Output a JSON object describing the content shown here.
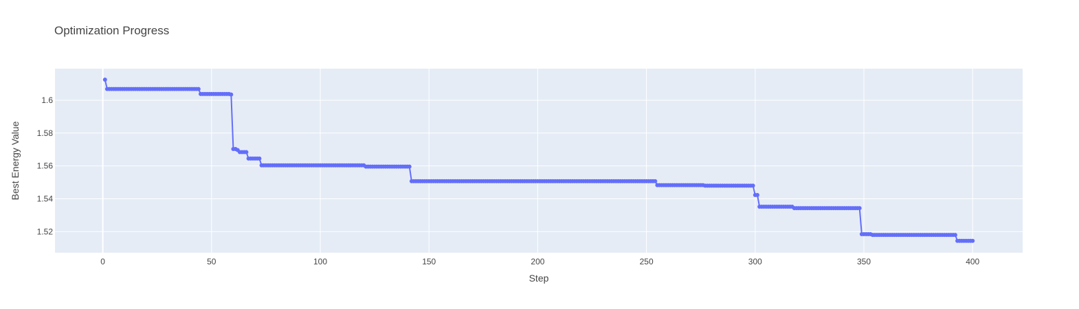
{
  "chart_data": {
    "type": "line",
    "title": "Optimization Progress",
    "xlabel": "Step",
    "ylabel": "Best Energy Value",
    "xlim": [
      -22,
      423
    ],
    "ylim": [
      1.5072,
      1.6192
    ],
    "xticks": [
      0,
      50,
      100,
      150,
      200,
      250,
      300,
      350,
      400
    ],
    "yticks": [
      1.52,
      1.54,
      1.56,
      1.58,
      1.6
    ],
    "xtick_labels": [
      "0",
      "50",
      "100",
      "150",
      "200",
      "250",
      "300",
      "350",
      "400"
    ],
    "ytick_labels": [
      "1.52",
      "1.54",
      "1.56",
      "1.58",
      "1.6"
    ],
    "grid": true,
    "legend": false,
    "series": [
      {
        "color": "#636efa",
        "mode": "lines+markers",
        "steps": [
          {
            "from": 1,
            "to": 1,
            "value": 1.6125
          },
          {
            "from": 2,
            "to": 44,
            "value": 1.6068
          },
          {
            "from": 45,
            "to": 58,
            "value": 1.6038
          },
          {
            "from": 59,
            "to": 59,
            "value": 1.6035
          },
          {
            "from": 60,
            "to": 61,
            "value": 1.5703
          },
          {
            "from": 62,
            "to": 62,
            "value": 1.5697
          },
          {
            "from": 63,
            "to": 66,
            "value": 1.5684
          },
          {
            "from": 67,
            "to": 72,
            "value": 1.5645
          },
          {
            "from": 73,
            "to": 120,
            "value": 1.5604
          },
          {
            "from": 121,
            "to": 141,
            "value": 1.5596
          },
          {
            "from": 142,
            "to": 254,
            "value": 1.5507
          },
          {
            "from": 255,
            "to": 276,
            "value": 1.5483
          },
          {
            "from": 277,
            "to": 299,
            "value": 1.548
          },
          {
            "from": 300,
            "to": 301,
            "value": 1.5423
          },
          {
            "from": 302,
            "to": 317,
            "value": 1.5352
          },
          {
            "from": 318,
            "to": 348,
            "value": 1.5343
          },
          {
            "from": 349,
            "to": 353,
            "value": 1.5185
          },
          {
            "from": 354,
            "to": 392,
            "value": 1.518
          },
          {
            "from": 393,
            "to": 400,
            "value": 1.5144
          }
        ]
      }
    ]
  }
}
